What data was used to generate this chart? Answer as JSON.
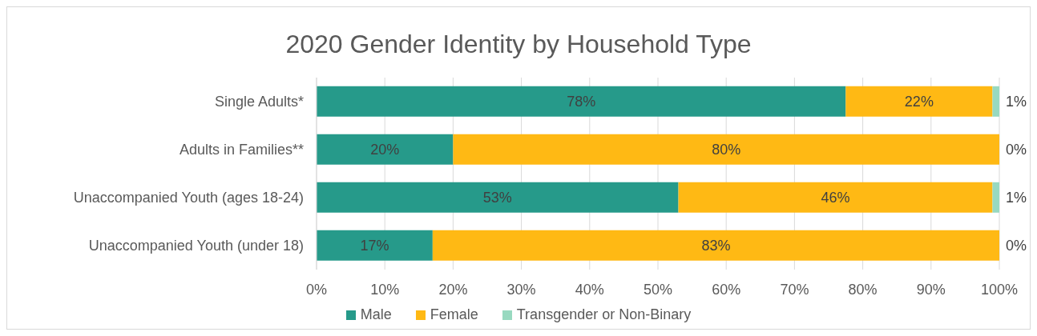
{
  "chart_data": {
    "type": "bar",
    "orientation": "horizontal",
    "stacked": true,
    "title": "2020 Gender Identity by Household Type",
    "categories": [
      "Single Adults*",
      "Adults in Families**",
      "Unaccompanied Youth (ages 18-24)",
      "Unaccompanied Youth (under 18)"
    ],
    "series": [
      {
        "name": "Male",
        "color": "#269a8a",
        "values": [
          77.5,
          20,
          53,
          17
        ],
        "value_labels": [
          "78%",
          "20%",
          "53%",
          "17%"
        ]
      },
      {
        "name": "Female",
        "color": "#ffb914",
        "values": [
          21.5,
          80,
          46,
          83
        ],
        "value_labels": [
          "22%",
          "80%",
          "46%",
          "83%"
        ]
      },
      {
        "name": "Transgender or Non-Binary",
        "color": "#98d9c0",
        "values": [
          1,
          0,
          1,
          0
        ],
        "value_labels": [
          "1%",
          "0%",
          "1%",
          "0%"
        ]
      }
    ],
    "xlim": [
      0,
      100
    ],
    "xticks": [
      {
        "value": 0,
        "label": "0%"
      },
      {
        "value": 10,
        "label": "10%"
      },
      {
        "value": 20,
        "label": "20%"
      },
      {
        "value": 30,
        "label": "30%"
      },
      {
        "value": 40,
        "label": "40%"
      },
      {
        "value": 50,
        "label": "50%"
      },
      {
        "value": 60,
        "label": "60%"
      },
      {
        "value": 70,
        "label": "70%"
      },
      {
        "value": 80,
        "label": "80%"
      },
      {
        "value": 90,
        "label": "90%"
      },
      {
        "value": 100,
        "label": "100%"
      }
    ],
    "grid": "x",
    "legend": "bottom"
  }
}
